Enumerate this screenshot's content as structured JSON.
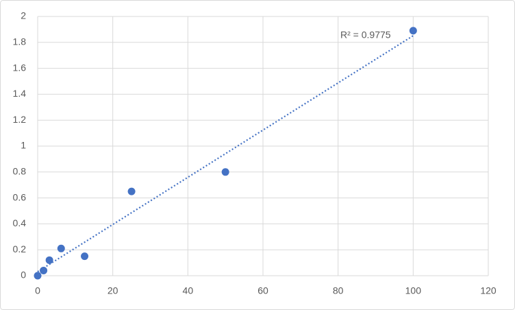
{
  "chart_data": {
    "type": "scatter",
    "x": [
      0,
      1.5625,
      3.125,
      6.25,
      12.5,
      25,
      50,
      100
    ],
    "values": [
      0,
      0.04,
      0.12,
      0.21,
      0.15,
      0.65,
      0.8,
      1.89
    ],
    "color": "#4472c4",
    "xlim": [
      0,
      120
    ],
    "xticks": [
      0,
      20,
      40,
      60,
      80,
      100,
      120
    ],
    "ylim": [
      0,
      2
    ],
    "yticks": [
      0,
      0.2,
      0.4,
      0.6,
      0.8,
      1,
      1.2,
      1.4,
      1.6,
      1.8,
      2
    ],
    "grid": true,
    "trendline": "linear",
    "annotation": "R² = 0.9775"
  }
}
